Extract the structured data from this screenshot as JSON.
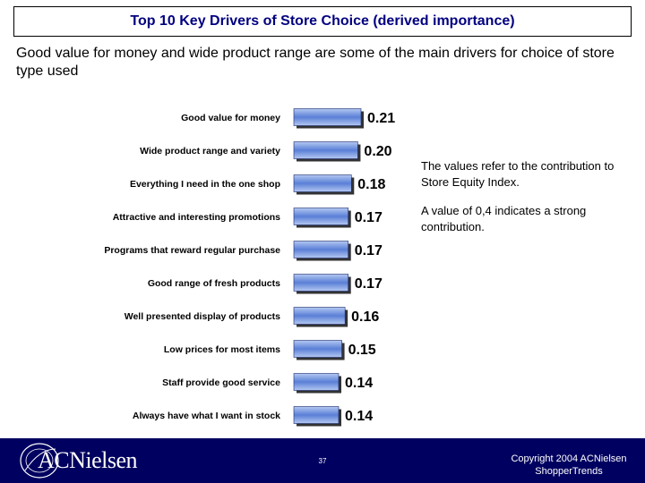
{
  "slide": {
    "title": "Top 10 Key Drivers of Store Choice (derived importance)",
    "subtitle": "Good value for money and wide product range are some of the main drivers for choice of store type used",
    "note_1": "The values refer to the contribution to Store Equity Index.",
    "note_2": "A value of 0,4 indicates a strong contribution."
  },
  "footer": {
    "logo_text": "ACNielsen",
    "page_number": "37",
    "copyright_line1": "Copyright 2004 ACNielsen",
    "copyright_line2": "ShopperTrends"
  },
  "colors": {
    "title_text": "#000080",
    "bar_fill_light": "#b4c8f2",
    "bar_fill_dark": "#5a7fd6",
    "footer_bg": "#000060"
  },
  "chart_data": {
    "type": "bar",
    "orientation": "horizontal",
    "categories": [
      "Good value for money",
      "Wide product range and variety",
      "Everything I need in the one shop",
      "Attractive and interesting promotions",
      "Programs that reward regular purchase",
      "Good range of fresh products",
      "Well presented display of products",
      "Low prices for most items",
      "Staff provide good service",
      "Always have what I want in stock"
    ],
    "values": [
      0.21,
      0.2,
      0.18,
      0.17,
      0.17,
      0.17,
      0.16,
      0.15,
      0.14,
      0.14
    ],
    "value_labels": [
      "0.21",
      "0.20",
      "0.18",
      "0.17",
      "0.17",
      "0.17",
      "0.16",
      "0.15",
      "0.14",
      "0.14"
    ],
    "xlim": [
      0,
      0.21
    ],
    "grid": false,
    "legend": "none"
  }
}
